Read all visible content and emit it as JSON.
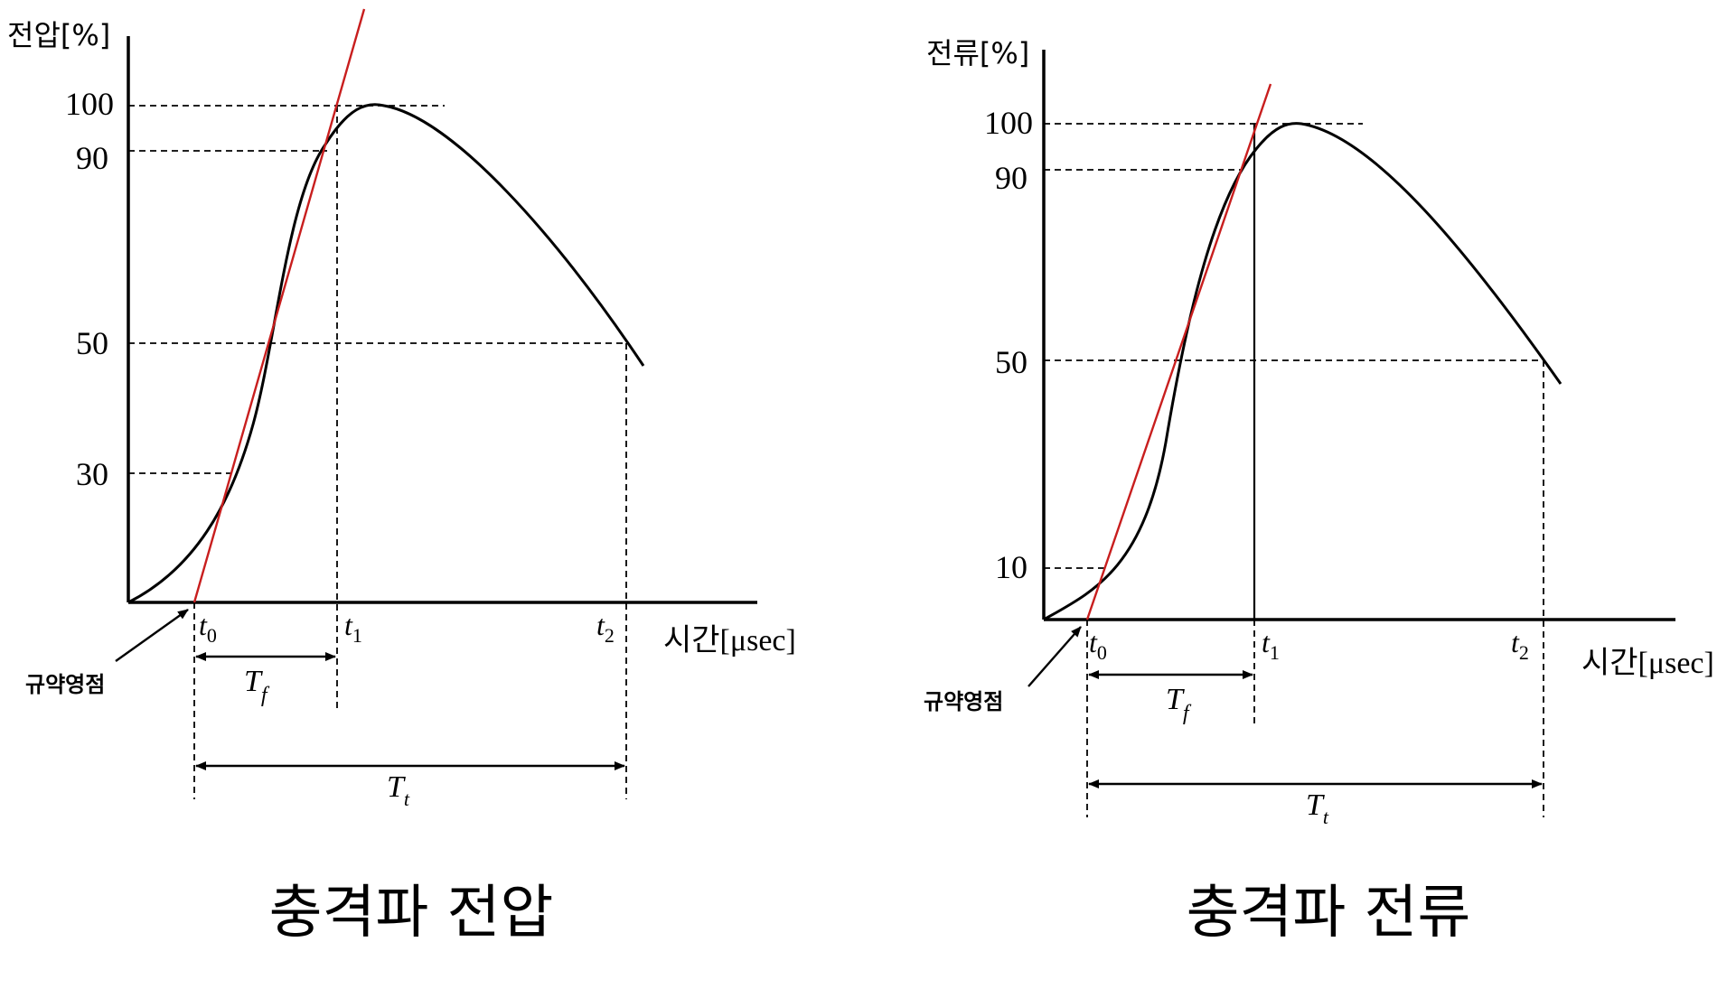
{
  "colors": {
    "curve": "#000000",
    "tangent": "#c81e1e",
    "guide": "#000000"
  },
  "panels": [
    {
      "id": "voltage",
      "y_axis_label": "전압[%]",
      "x_axis_label": "시간[μsec]",
      "ticks": [
        "100",
        "90",
        "50",
        "30"
      ],
      "time_points": {
        "t0": "t",
        "t0_sub": "0",
        "t1": "t",
        "t1_sub": "1",
        "t2": "t",
        "t2_sub": "2"
      },
      "front_time": {
        "main": "T",
        "sub": "f"
      },
      "tail_time": {
        "main": "T",
        "sub": "t"
      },
      "origin_note": "규약영점",
      "caption": "충격파 전압"
    },
    {
      "id": "current",
      "y_axis_label": "전류[%]",
      "x_axis_label": "시간[μsec]",
      "ticks": [
        "100",
        "90",
        "50",
        "10"
      ],
      "time_points": {
        "t0": "t",
        "t0_sub": "0",
        "t1": "t",
        "t1_sub": "1",
        "t2": "t",
        "t2_sub": "2"
      },
      "front_time": {
        "main": "T",
        "sub": "f"
      },
      "tail_time": {
        "main": "T",
        "sub": "t"
      },
      "origin_note": "규약영점",
      "caption": "충격파 전류"
    }
  ]
}
